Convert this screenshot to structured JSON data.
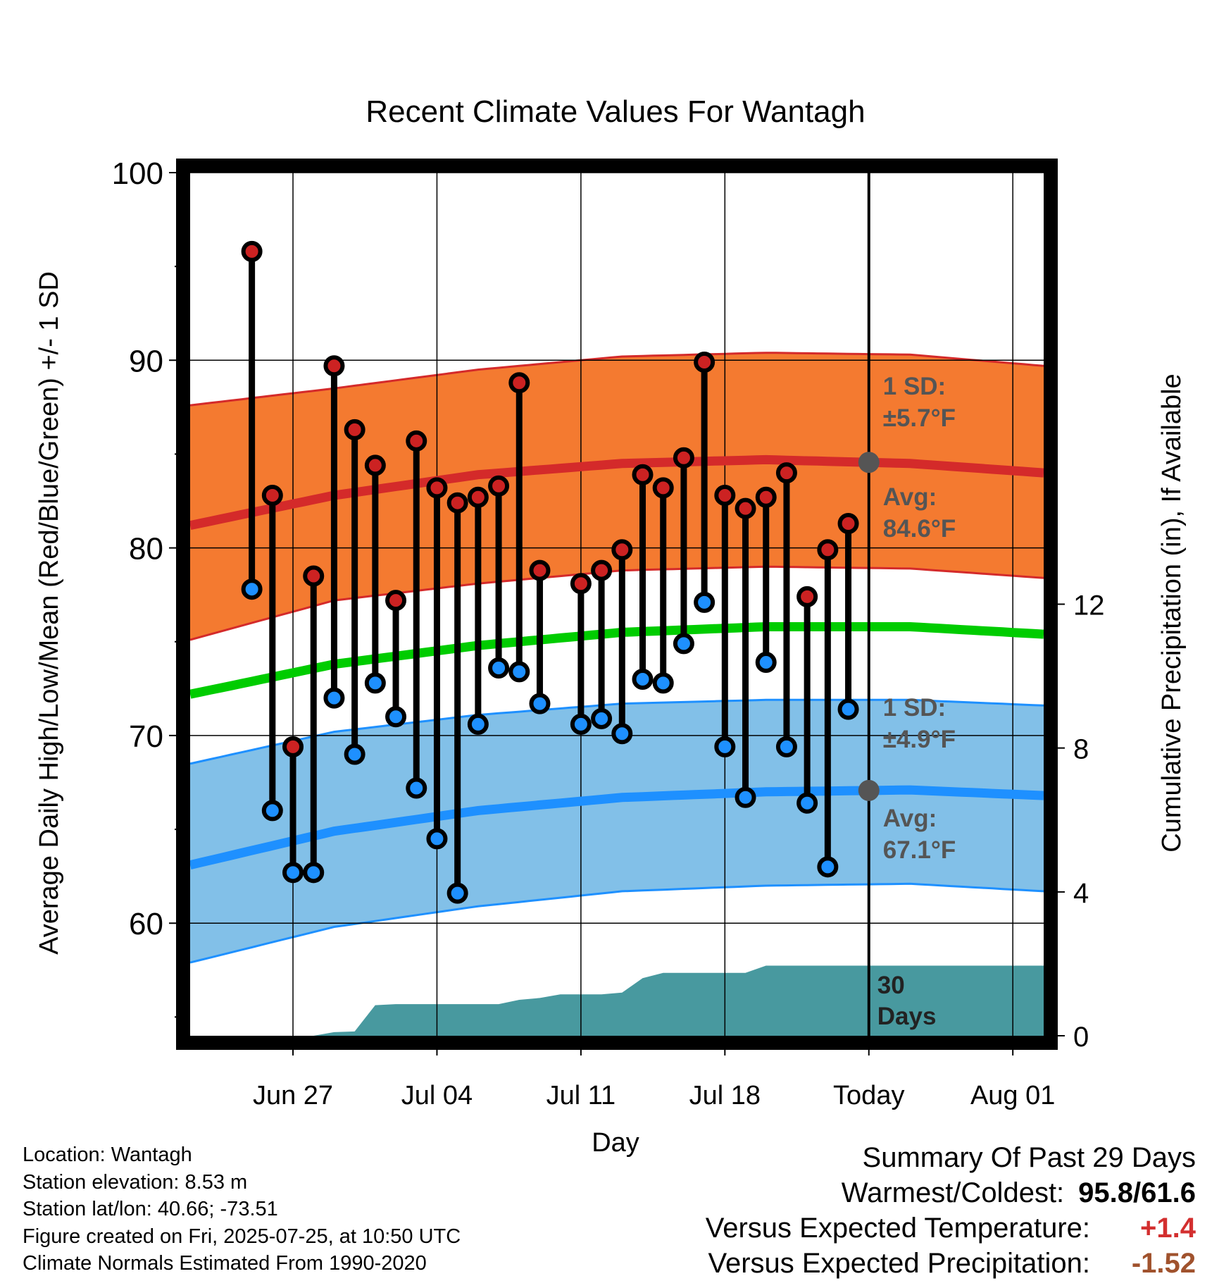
{
  "chart_data": {
    "type": "line",
    "title": "Recent Climate Values For Wantagh",
    "xlabel": "Day",
    "ylabel": "Average Daily High/Low/Mean (Red/Blue/Green) +/- 1 SD",
    "y2label": "Cumulative Precipitation (in), If Available",
    "xlim_days": [
      -33,
      8.5
    ],
    "ylim": [
      54,
      100
    ],
    "y2lim": [
      0,
      24
    ],
    "x_ticks": [
      {
        "label": "Jun 27",
        "day": -28
      },
      {
        "label": "Jul 04",
        "day": -21
      },
      {
        "label": "Jul 11",
        "day": -14
      },
      {
        "label": "Jul 18",
        "day": -7
      },
      {
        "label": "Today",
        "day": 0
      },
      {
        "label": "Aug 01",
        "day": 7
      }
    ],
    "y_ticks": [
      60,
      70,
      80,
      90,
      100
    ],
    "y2_ticks": [
      0,
      4,
      8,
      12
    ],
    "grid": true,
    "daily": {
      "day": [
        -30,
        -29,
        -28,
        -27,
        -26,
        -25,
        -24,
        -23,
        -22,
        -21,
        -20,
        -19,
        -18,
        -17,
        -16,
        -14,
        -13,
        -12,
        -11,
        -10,
        -9,
        -8,
        -7,
        -6,
        -5,
        -4,
        -3,
        -2,
        -1
      ],
      "high": [
        95.8,
        82.8,
        69.4,
        78.5,
        89.7,
        86.3,
        84.4,
        77.2,
        85.7,
        83.2,
        82.4,
        82.7,
        83.3,
        88.8,
        78.8,
        78.1,
        78.8,
        79.9,
        83.9,
        83.2,
        84.8,
        89.9,
        82.8,
        82.1,
        82.7,
        84.0,
        77.4,
        79.9,
        81.3
      ],
      "low": [
        77.8,
        66.0,
        62.7,
        62.7,
        72.0,
        69.0,
        72.8,
        71.0,
        67.2,
        64.5,
        61.6,
        70.6,
        73.6,
        73.4,
        71.7,
        70.6,
        70.9,
        70.1,
        73.0,
        72.8,
        74.9,
        77.1,
        69.4,
        66.7,
        73.9,
        69.4,
        66.4,
        63.0,
        71.4
      ]
    },
    "normal_high": {
      "day": [
        -33,
        -26,
        -19,
        -12,
        -5,
        2,
        8.5
      ],
      "value": [
        81.2,
        82.8,
        83.9,
        84.5,
        84.7,
        84.5,
        84.0
      ]
    },
    "normal_high_band": {
      "day": [
        -33,
        -26,
        -19,
        -12,
        -5,
        2,
        8.5
      ],
      "upper": [
        87.6,
        88.5,
        89.5,
        90.2,
        90.4,
        90.3,
        89.7
      ],
      "lower": [
        75.1,
        77.2,
        78.1,
        78.8,
        79.0,
        78.9,
        78.4
      ]
    },
    "normal_mean": {
      "day": [
        -33,
        -26,
        -19,
        -12,
        -5,
        2,
        8.5
      ],
      "value": [
        72.2,
        73.8,
        74.8,
        75.5,
        75.8,
        75.8,
        75.4
      ]
    },
    "normal_low": {
      "day": [
        -33,
        -26,
        -19,
        -12,
        -5,
        2,
        8.5
      ],
      "value": [
        63.1,
        64.9,
        66.0,
        66.7,
        67.0,
        67.1,
        66.8
      ]
    },
    "normal_low_band": {
      "day": [
        -33,
        -26,
        -19,
        -12,
        -5,
        2,
        8.5
      ],
      "upper": [
        68.5,
        70.2,
        71.1,
        71.7,
        71.9,
        71.9,
        71.6
      ],
      "lower": [
        57.9,
        59.8,
        60.9,
        61.7,
        62.0,
        62.1,
        61.7
      ]
    },
    "precip_cumulative": {
      "day": [
        -33,
        -28,
        -27,
        -26,
        -25,
        -24,
        -23,
        -22,
        -21,
        -20,
        -19,
        -18,
        -17,
        -16,
        -15,
        -14,
        -13,
        -12,
        -11,
        -10,
        -9,
        -8,
        -7,
        -6,
        -5,
        -4,
        -3,
        -2,
        -1,
        0,
        8.5
      ],
      "value": [
        0,
        0,
        0,
        0.1,
        0.12,
        0.85,
        0.88,
        0.88,
        0.88,
        0.88,
        0.88,
        0.88,
        1.0,
        1.05,
        1.15,
        1.15,
        1.15,
        1.2,
        1.6,
        1.75,
        1.75,
        1.75,
        1.75,
        1.75,
        1.95,
        1.95,
        1.95,
        1.95,
        1.95,
        1.95,
        1.95
      ]
    },
    "annotations": {
      "high_sd_label": "1 SD:",
      "high_sd_value": "±5.7°F",
      "high_avg_label": "Avg:",
      "high_avg_value": "84.6°F",
      "low_sd_label": "1 SD:",
      "low_sd_value": "±4.9°F",
      "low_avg_label": "Avg:",
      "low_avg_value": "67.1°F",
      "precip_days_line1": "30",
      "precip_days_line2": "Days"
    },
    "colors": {
      "high_band": "#f47a30",
      "high_line": "#d42a2a",
      "mean_line": "#00cc00",
      "low_band": "#82c0e8",
      "low_line": "#1e90ff",
      "precip": "#48999f",
      "high_dot": "#cc2222",
      "low_dot": "#1e90ff",
      "avg_dot": "#555555",
      "annotation_text": "#555555"
    }
  },
  "footer": {
    "location": "Location: Wantagh",
    "elevation": "Station elevation: 8.53 m",
    "latlon": "Station lat/lon: 40.66; -73.51",
    "created": "Figure created on Fri, 2025-07-25, at 10:50 UTC",
    "normals": "Climate Normals Estimated From 1990-2020"
  },
  "summary": {
    "title": "Summary Of Past 29 Days",
    "warmest_coldest_label": "Warmest/Coldest:",
    "warmest_coldest_value": "95.8/61.6",
    "temp_label": "Versus Expected Temperature:",
    "temp_value": "+1.4",
    "precip_label": "Versus Expected Precipitation:",
    "precip_value": "-1.52"
  }
}
